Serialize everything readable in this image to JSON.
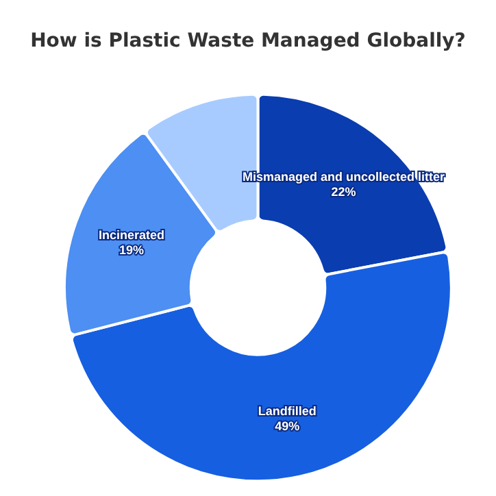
{
  "chart_data": {
    "type": "donut",
    "title": "How is Plastic Waste Managed Globally?",
    "categories": [
      "Mismanaged and uncollected litter",
      "Landfilled",
      "Incinerated",
      null
    ],
    "values": [
      22,
      49,
      19,
      10
    ],
    "colors": [
      "#0a3db0",
      "#165fe0",
      "#4d8ff2",
      "#a8cbff"
    ],
    "value_labels": [
      "22%",
      "49%",
      "19%",
      null
    ]
  }
}
